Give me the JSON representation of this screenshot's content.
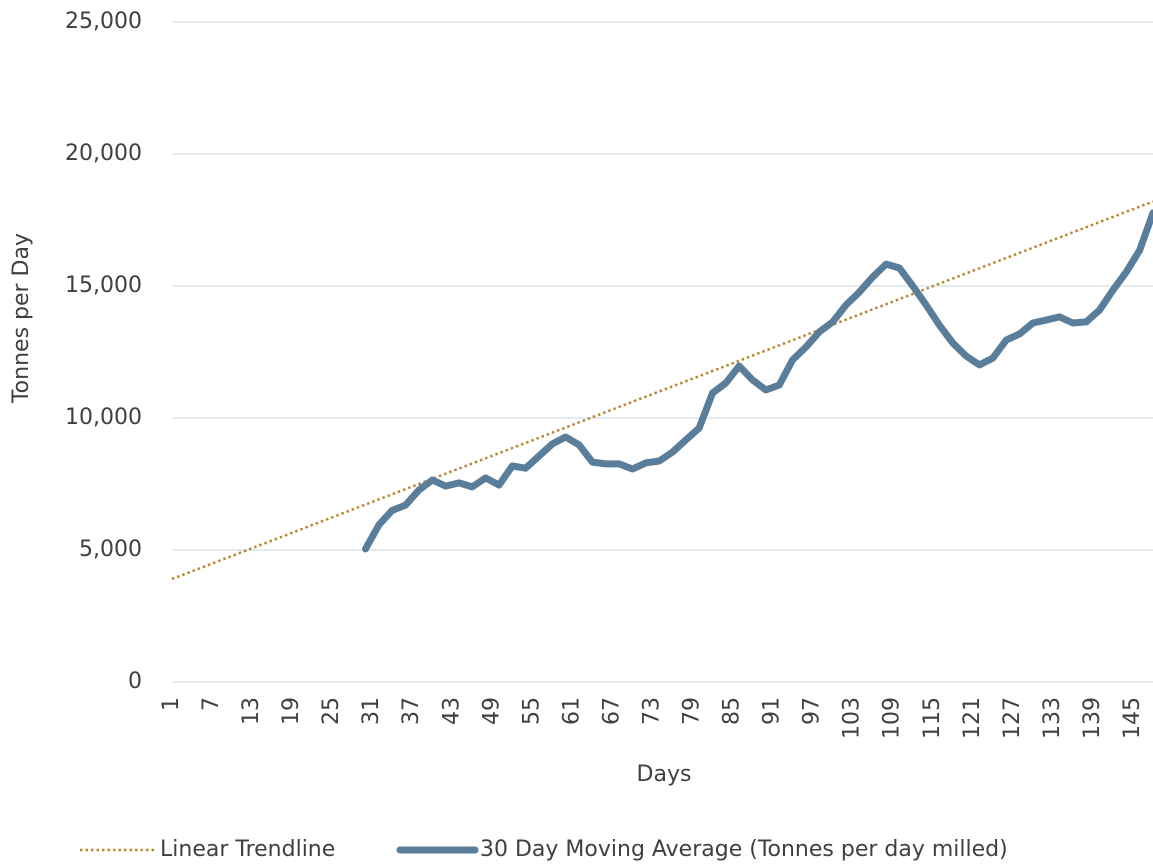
{
  "chart_data": {
    "type": "line",
    "xlabel": "Days",
    "ylabel": "Tonnes per Day",
    "xlim": [
      1,
      148
    ],
    "xticks": [
      1,
      7,
      13,
      19,
      25,
      31,
      37,
      43,
      49,
      55,
      61,
      67,
      73,
      79,
      85,
      91,
      97,
      103,
      109,
      115,
      121,
      127,
      133,
      139,
      145
    ],
    "ylim": [
      0,
      25000
    ],
    "yticks": [
      0,
      {
        "value": 5000,
        "label": "5,000"
      },
      {
        "value": 10000,
        "label": "10,000"
      },
      {
        "value": 15000,
        "label": "15,000"
      },
      {
        "value": 20000,
        "label": "20,000"
      },
      {
        "value": 25000,
        "label": "25,000"
      }
    ],
    "grid": true,
    "legend": "bottom",
    "series": [
      {
        "name": "Linear Trendline",
        "color": "#b8862e",
        "style": "dotted",
        "x": [
          1,
          148
        ],
        "values": [
          3900,
          18200
        ]
      },
      {
        "name": "30 Day Moving Average (Tonnes per day milled)",
        "color": "#5a7d9a",
        "style": "solid",
        "x": [
          30,
          32,
          34,
          36,
          38,
          40,
          42,
          44,
          46,
          48,
          50,
          52,
          54,
          56,
          58,
          60,
          62,
          64,
          66,
          68,
          70,
          72,
          74,
          76,
          78,
          80,
          82,
          84,
          86,
          88,
          90,
          92,
          94,
          96,
          98,
          100,
          102,
          104,
          106,
          108,
          110,
          112,
          114,
          116,
          118,
          120,
          122,
          124,
          126,
          128,
          130,
          132,
          134,
          136,
          138,
          140,
          142,
          144,
          146,
          148
        ],
        "values": [
          5040,
          5950,
          6500,
          6700,
          7270,
          7650,
          7420,
          7540,
          7390,
          7730,
          7460,
          8180,
          8100,
          8560,
          9020,
          9280,
          8980,
          8330,
          8260,
          8260,
          8070,
          8300,
          8370,
          8710,
          9170,
          9620,
          10950,
          11330,
          11970,
          11440,
          11060,
          11250,
          12200,
          12690,
          13260,
          13640,
          14280,
          14770,
          15340,
          15830,
          15680,
          15000,
          14280,
          13520,
          12840,
          12350,
          12010,
          12270,
          12950,
          13180,
          13600,
          13710,
          13830,
          13600,
          13640,
          14090,
          14850,
          15530,
          16360,
          17770
        ]
      }
    ]
  }
}
